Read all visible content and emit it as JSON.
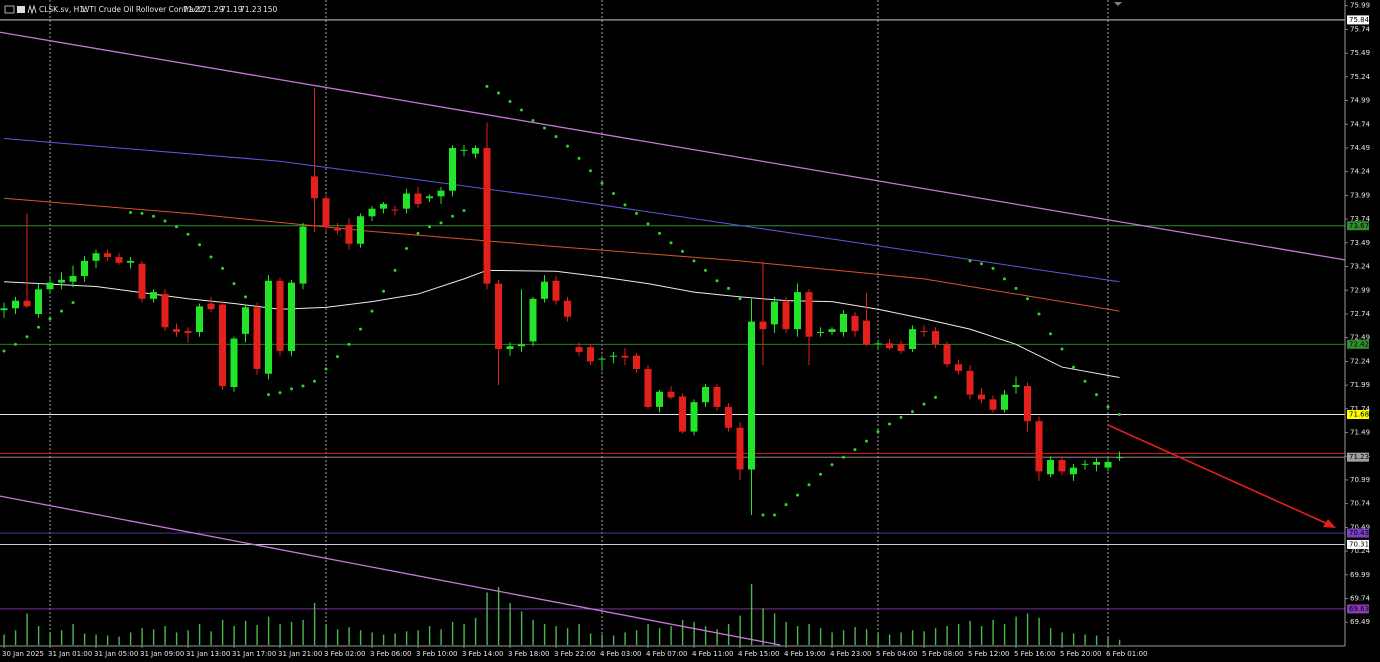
{
  "chart_data": {
    "type": "candlestick",
    "symbol": "CLSK.sv, H1:",
    "title": "WTI Crude Oil Rollover Contract",
    "up_color": "#22e52a",
    "down_color": "#e3201b",
    "volume_color": "#4cb84c",
    "categories": [
      "30 Jan 2025",
      null,
      null,
      null,
      "31 Jan 01:00",
      null,
      null,
      null,
      "31 Jan 05:00",
      null,
      null,
      null,
      "31 Jan 09:00",
      null,
      null,
      null,
      "31 Jan 13:00",
      null,
      null,
      null,
      "31 Jan 17:00",
      null,
      null,
      null,
      "31 Jan 21:00",
      null,
      null,
      null,
      "3 Feb 02:00",
      null,
      null,
      null,
      "3 Feb 06:00",
      null,
      null,
      null,
      "3 Feb 10:00",
      null,
      null,
      null,
      "3 Feb 14:00",
      null,
      null,
      null,
      "3 Feb 18:00",
      null,
      null,
      null,
      "3 Feb 22:00",
      null,
      null,
      null,
      "4 Feb 03:00",
      null,
      null,
      null,
      "4 Feb 07:00",
      null,
      null,
      null,
      "4 Feb 11:00",
      null,
      null,
      null,
      "4 Feb 15:00",
      null,
      null,
      null,
      "4 Feb 19:00",
      null,
      null,
      null,
      "4 Feb 23:00",
      null,
      null,
      null,
      "5 Feb 04:00",
      null,
      null,
      null,
      "5 Feb 08:00",
      null,
      null,
      null,
      "5 Feb 12:00",
      null,
      null,
      null,
      "5 Feb 16:00",
      null,
      null,
      null,
      "5 Feb 20:00",
      null,
      null,
      null,
      "6 Feb 01:00",
      null
    ],
    "open": [
      72.78,
      72.8,
      72.88,
      72.74,
      73.0,
      73.07,
      73.08,
      73.14,
      73.3,
      73.38,
      73.34,
      73.28,
      73.27,
      72.9,
      72.95,
      72.58,
      72.56,
      72.55,
      72.85,
      72.84,
      71.97,
      72.53,
      72.81,
      72.11,
      73.09,
      72.35,
      73.06,
      74.19,
      73.96,
      73.64,
      73.68,
      73.48,
      73.77,
      73.85,
      73.84,
      73.85,
      74.01,
      73.96,
      73.98,
      74.04,
      74.47,
      74.43,
      74.49,
      73.06,
      72.37,
      72.4,
      72.45,
      72.9,
      73.09,
      72.88,
      72.39,
      72.39,
      72.26,
      72.29,
      72.3,
      72.3,
      72.16,
      71.76,
      71.92,
      71.87,
      71.5,
      71.81,
      71.97,
      71.76,
      71.54,
      71.1,
      72.66,
      72.63,
      72.87,
      72.58,
      72.97,
      72.55,
      72.55,
      72.55,
      72.72,
      72.67,
      72.42,
      72.43,
      72.42,
      72.37,
      72.56,
      72.56,
      72.42,
      72.21,
      72.14,
      71.89,
      71.84,
      71.73,
      71.97,
      71.98,
      71.61,
      71.05,
      71.2,
      71.05,
      71.15,
      71.15,
      71.12,
      71.22
    ],
    "high": [
      72.86,
      72.92,
      73.8,
      73.06,
      73.12,
      73.18,
      73.25,
      73.35,
      73.42,
      73.42,
      73.38,
      73.34,
      73.3,
      73.0,
      73.0,
      72.64,
      72.6,
      72.85,
      72.92,
      72.88,
      72.5,
      72.84,
      72.86,
      73.15,
      73.12,
      73.1,
      73.7,
      75.12,
      74.0,
      73.7,
      73.75,
      73.8,
      73.88,
      73.92,
      73.88,
      74.06,
      74.08,
      74.0,
      74.08,
      74.52,
      74.52,
      74.52,
      74.76,
      73.1,
      72.44,
      73.0,
      72.92,
      73.15,
      73.14,
      72.92,
      72.44,
      72.42,
      72.3,
      72.34,
      72.38,
      72.33,
      72.2,
      71.94,
      71.98,
      71.9,
      71.84,
      72.0,
      72.0,
      71.8,
      71.6,
      72.9,
      73.29,
      72.92,
      72.92,
      73.06,
      73.0,
      72.6,
      72.6,
      72.78,
      72.76,
      72.96,
      72.46,
      72.48,
      72.46,
      72.62,
      72.62,
      72.6,
      72.45,
      72.26,
      72.2,
      71.96,
      71.88,
      71.94,
      72.08,
      72.02,
      71.66,
      71.24,
      71.24,
      71.16,
      71.2,
      71.22,
      71.24,
      71.29
    ],
    "low": [
      72.7,
      72.74,
      72.8,
      72.7,
      72.95,
      73.0,
      73.02,
      73.08,
      73.22,
      73.3,
      73.26,
      73.22,
      72.86,
      72.86,
      72.56,
      72.5,
      72.44,
      72.5,
      72.76,
      71.94,
      71.92,
      72.44,
      72.1,
      72.05,
      72.3,
      72.3,
      73.0,
      73.6,
      73.6,
      73.58,
      73.42,
      73.44,
      73.72,
      73.8,
      73.78,
      73.8,
      73.86,
      73.92,
      73.9,
      73.98,
      74.4,
      74.38,
      73.0,
      71.99,
      72.3,
      72.34,
      72.4,
      72.86,
      72.84,
      72.66,
      72.3,
      72.2,
      72.14,
      72.22,
      72.2,
      72.12,
      71.74,
      71.7,
      71.84,
      71.48,
      71.46,
      71.76,
      71.72,
      71.5,
      70.99,
      70.62,
      72.2,
      72.54,
      72.54,
      72.5,
      72.2,
      72.5,
      72.52,
      72.5,
      72.5,
      72.4,
      72.36,
      72.36,
      72.32,
      72.34,
      72.5,
      72.38,
      72.18,
      72.1,
      71.84,
      71.8,
      71.7,
      71.7,
      71.9,
      71.5,
      70.98,
      71.02,
      71.04,
      70.98,
      71.1,
      71.08,
      71.08,
      71.19
    ],
    "close": [
      72.8,
      72.88,
      72.82,
      73.0,
      73.07,
      73.1,
      73.14,
      73.3,
      73.38,
      73.34,
      73.28,
      73.3,
      72.9,
      72.97,
      72.6,
      72.55,
      72.54,
      72.82,
      72.79,
      71.98,
      72.48,
      72.81,
      72.16,
      73.09,
      72.35,
      73.07,
      73.66,
      73.96,
      73.66,
      73.62,
      73.48,
      73.77,
      73.85,
      73.9,
      73.83,
      74.01,
      73.9,
      73.98,
      74.04,
      74.49,
      74.47,
      74.49,
      73.06,
      72.37,
      72.4,
      72.42,
      72.9,
      73.08,
      72.88,
      72.71,
      72.34,
      72.24,
      72.27,
      72.3,
      72.28,
      72.16,
      71.76,
      71.92,
      71.86,
      71.5,
      71.81,
      71.97,
      71.76,
      71.54,
      71.1,
      72.66,
      72.58,
      72.87,
      72.58,
      72.97,
      72.5,
      72.55,
      72.58,
      72.74,
      72.56,
      72.42,
      72.43,
      72.38,
      72.35,
      72.58,
      72.55,
      72.42,
      72.21,
      72.14,
      71.89,
      71.84,
      71.73,
      71.89,
      71.99,
      71.61,
      71.08,
      71.2,
      71.08,
      71.12,
      71.16,
      71.18,
      71.18,
      71.23
    ],
    "volume": [
      300,
      420,
      900,
      540,
      360,
      420,
      600,
      330,
      300,
      270,
      240,
      360,
      480,
      450,
      540,
      360,
      420,
      600,
      390,
      720,
      540,
      690,
      570,
      810,
      600,
      660,
      720,
      1200,
      600,
      450,
      510,
      420,
      360,
      300,
      330,
      390,
      420,
      540,
      450,
      660,
      600,
      780,
      1500,
      1650,
      1200,
      960,
      720,
      600,
      540,
      480,
      600,
      330,
      300,
      270,
      360,
      420,
      600,
      480,
      540,
      720,
      660,
      540,
      450,
      600,
      840,
      1740,
      1050,
      900,
      660,
      540,
      600,
      480,
      360,
      420,
      510,
      450,
      330,
      300,
      360,
      420,
      390,
      480,
      540,
      600,
      690,
      540,
      720,
      600,
      810,
      900,
      780,
      480,
      360,
      330,
      300,
      270,
      240,
      150
    ],
    "ylim": [
      69.25,
      76.05
    ],
    "yticks": [
      75.99,
      75.74,
      75.49,
      75.24,
      74.99,
      74.74,
      74.49,
      74.24,
      73.99,
      73.74,
      73.49,
      73.24,
      72.99,
      72.74,
      72.49,
      72.24,
      71.99,
      71.74,
      71.49,
      71.24,
      70.99,
      70.74,
      70.49,
      70.24,
      69.99,
      69.74,
      69.49
    ],
    "levels": [
      {
        "value": 75.84,
        "line_color": "#e6e6e6",
        "label_bg": "#ffffff",
        "label_color": "#000000"
      },
      {
        "value": 73.67,
        "line_color": "#2f8f2f",
        "label_bg": "#2f8f2f",
        "label_color": "#000000"
      },
      {
        "value": 72.42,
        "line_color": "#2f8f2f",
        "label_bg": "#2f8f2f",
        "label_color": "#000000"
      },
      {
        "value": 71.68,
        "line_color": "#e6e6e6",
        "label_bg": "#ffff00",
        "label_color": "#000000"
      },
      {
        "value": 71.23,
        "line_color": "#a0a0a0",
        "label_bg": "#a0a0a0",
        "label_color": "#000000"
      },
      {
        "value": 70.43,
        "line_color": "#5a3aa8",
        "label_bg": "#7a40c0",
        "label_color": "#000000"
      },
      {
        "value": 70.31,
        "line_color": "#e6e6e6",
        "label_bg": "#ffffff",
        "label_color": "#000000"
      },
      {
        "value": 69.63,
        "line_color": "#8a3ab8",
        "label_bg": "#8a3ab8",
        "label_color": "#000000"
      }
    ],
    "ask_line": {
      "value": 71.27,
      "color": "#d42020"
    },
    "trendlines": [
      {
        "color": "#c878d8",
        "x": [
          -0.35,
          116.6
        ],
        "values": [
          75.71,
          73.31
        ]
      },
      {
        "color": "#c878d8",
        "x": [
          -0.35,
          67.5
        ],
        "values": [
          70.82,
          69.25
        ]
      }
    ],
    "indicators": [
      {
        "style": "line",
        "color": "#5a5ae0",
        "x": [
          0,
          24,
          48,
          72,
          97
        ],
        "values": [
          74.59,
          74.35,
          73.96,
          73.53,
          73.08
        ]
      },
      {
        "style": "line",
        "color": "#d8542a",
        "x": [
          0,
          16,
          32,
          48,
          64,
          80,
          97
        ],
        "values": [
          73.96,
          73.8,
          73.61,
          73.45,
          73.3,
          73.11,
          72.77
        ]
      },
      {
        "style": "line",
        "color": "#ececec",
        "x": [
          0,
          8,
          16,
          20,
          24,
          28,
          32,
          36,
          40,
          42,
          48,
          52,
          56,
          60,
          64,
          68,
          72,
          76,
          80,
          84,
          88,
          92,
          97
        ],
        "values": [
          73.08,
          73.03,
          72.9,
          72.85,
          72.79,
          72.81,
          72.87,
          72.95,
          73.11,
          73.2,
          73.19,
          73.13,
          73.06,
          72.97,
          72.92,
          72.88,
          72.87,
          72.79,
          72.69,
          72.58,
          72.42,
          72.18,
          72.07
        ]
      },
      {
        "style": "dots",
        "color": "#2fd52f",
        "x": [
          0,
          1,
          2,
          3,
          4,
          5,
          6,
          11,
          12,
          13,
          14,
          15,
          16,
          17,
          18,
          19,
          20,
          21,
          23,
          24,
          25,
          26,
          27,
          28,
          29,
          30,
          31,
          32,
          33,
          34,
          35,
          36,
          37,
          38,
          39,
          40,
          42,
          43,
          44,
          45,
          46,
          47,
          48,
          49,
          50,
          51,
          52,
          53,
          54,
          55,
          56,
          57,
          58,
          59,
          60,
          61,
          62,
          63,
          64,
          66,
          67,
          68,
          69,
          70,
          71,
          72,
          73,
          74,
          75,
          76,
          77,
          78,
          79,
          80,
          81,
          84,
          85,
          86,
          87,
          88,
          89,
          90,
          91,
          92,
          93,
          94,
          95,
          96,
          97
        ],
        "values": [
          72.35,
          72.42,
          72.5,
          72.6,
          72.69,
          72.77,
          72.86,
          73.81,
          73.8,
          73.77,
          73.72,
          73.66,
          73.58,
          73.47,
          73.34,
          73.22,
          73.06,
          72.92,
          71.89,
          71.91,
          71.95,
          71.98,
          72.03,
          72.16,
          72.29,
          72.42,
          72.58,
          72.77,
          72.98,
          73.2,
          73.43,
          73.59,
          73.66,
          73.7,
          73.77,
          73.83,
          75.14,
          75.07,
          74.98,
          74.89,
          74.78,
          74.7,
          74.61,
          74.51,
          74.38,
          74.25,
          74.12,
          74.01,
          73.89,
          73.8,
          73.69,
          73.59,
          73.49,
          73.4,
          73.3,
          73.2,
          73.09,
          73.01,
          72.9,
          70.62,
          70.62,
          70.73,
          70.83,
          70.94,
          71.05,
          71.15,
          71.23,
          71.31,
          71.4,
          71.5,
          71.58,
          71.65,
          71.71,
          71.79,
          71.86,
          73.3,
          73.27,
          73.22,
          73.11,
          73.01,
          72.9,
          72.74,
          72.53,
          72.37,
          72.18,
          72.03,
          71.89,
          71.76,
          71.68
        ]
      }
    ]
  }
}
